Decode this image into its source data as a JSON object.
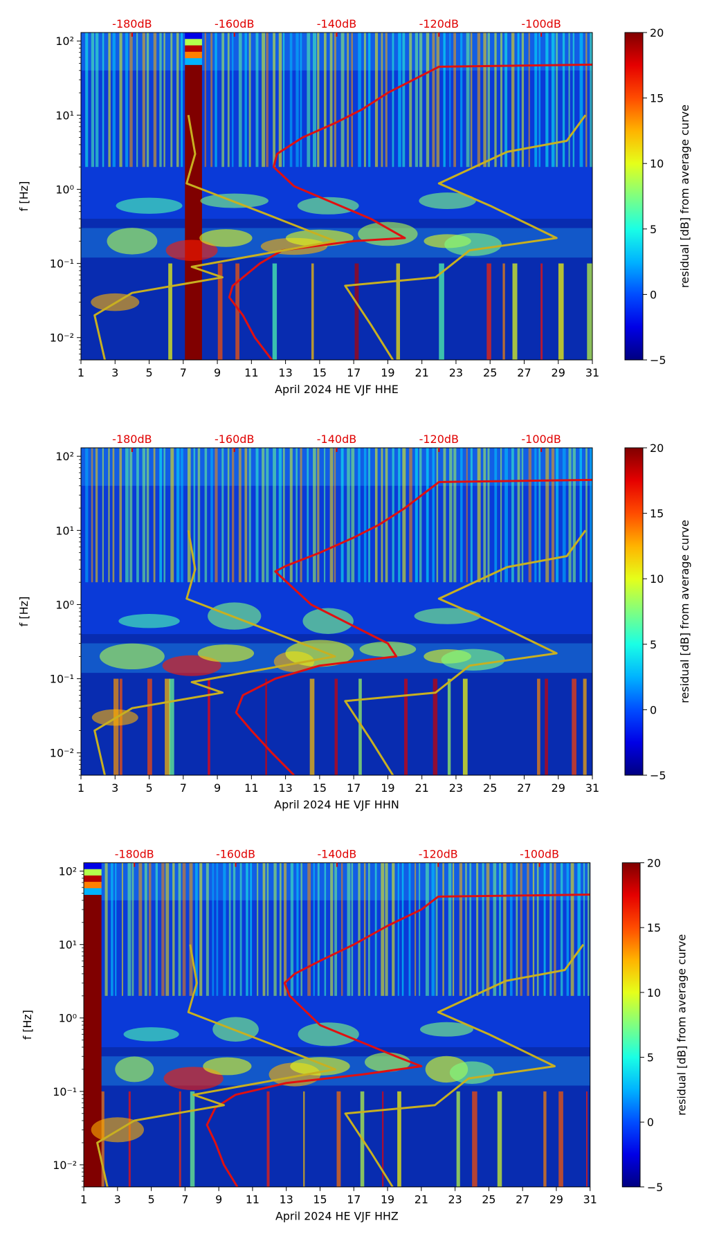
{
  "chart_data": [
    {
      "type": "heatmap",
      "title": "",
      "xlabel": "April 2024 HE VJF  HHE",
      "ylabel": "f [Hz]",
      "x_ticks": [
        "1",
        "3",
        "5",
        "7",
        "9",
        "11",
        "13",
        "15",
        "17",
        "19",
        "21",
        "23",
        "25",
        "27",
        "29",
        "31"
      ],
      "y_ticks": [
        "10⁻²",
        "10⁻¹",
        "10⁰",
        "10¹",
        "10²"
      ],
      "xlim": [
        1,
        31
      ],
      "ylim": [
        0.005,
        130
      ],
      "top_axis_ticks": [
        "-180dB",
        "-160dB",
        "-140dB",
        "-120dB",
        "-100dB"
      ],
      "colorbar": {
        "label": "residual [dB] from average curve",
        "range": [
          -5,
          20
        ],
        "ticks": [
          "20",
          "15",
          "10",
          "5",
          "0",
          "−5"
        ]
      },
      "series": [
        {
          "name": "median PSD curve",
          "color": "#e01010",
          "points": [
            [
              12.2,
              0.005
            ],
            [
              11.2,
              0.01
            ],
            [
              10.5,
              0.02
            ],
            [
              9.7,
              0.035
            ],
            [
              9.9,
              0.05
            ],
            [
              11.5,
              0.1
            ],
            [
              12.8,
              0.15
            ],
            [
              17,
              0.2
            ],
            [
              20,
              0.22
            ],
            [
              18,
              0.4
            ],
            [
              13.5,
              1.1
            ],
            [
              12.3,
              2
            ],
            [
              12.5,
              3
            ],
            [
              14,
              5
            ],
            [
              16,
              8
            ],
            [
              17.5,
              12
            ],
            [
              19,
              20
            ],
            [
              20.5,
              30
            ],
            [
              22,
              45
            ],
            [
              31,
              48
            ]
          ]
        },
        {
          "name": "low noise model",
          "color": "#c8b020",
          "points": [
            [
              2.4,
              0.005
            ],
            [
              2.1,
              0.01
            ],
            [
              1.8,
              0.02
            ],
            [
              4,
              0.04
            ],
            [
              9.3,
              0.065
            ],
            [
              7.5,
              0.09
            ],
            [
              15.9,
              0.2
            ],
            [
              12,
              0.45
            ],
            [
              7.2,
              1.2
            ],
            [
              7.7,
              3
            ],
            [
              7.3,
              10
            ]
          ]
        },
        {
          "name": "high noise model",
          "color": "#c8b020",
          "points": [
            [
              19.3,
              0.005
            ],
            [
              18,
              0.015
            ],
            [
              16.5,
              0.05
            ],
            [
              21.8,
              0.065
            ],
            [
              23.8,
              0.15
            ],
            [
              28.9,
              0.22
            ],
            [
              25,
              0.6
            ],
            [
              22,
              1.2
            ],
            [
              26,
              3.2
            ],
            [
              29.5,
              4.5
            ],
            [
              30.6,
              10
            ]
          ]
        }
      ]
    },
    {
      "type": "heatmap",
      "title": "",
      "xlabel": "April 2024 HE VJF  HHN",
      "ylabel": "f [Hz]",
      "x_ticks": [
        "1",
        "3",
        "5",
        "7",
        "9",
        "11",
        "13",
        "15",
        "17",
        "19",
        "21",
        "23",
        "25",
        "27",
        "29",
        "31"
      ],
      "y_ticks": [
        "10⁻²",
        "10⁻¹",
        "10⁰",
        "10¹",
        "10²"
      ],
      "xlim": [
        1,
        31
      ],
      "ylim": [
        0.005,
        130
      ],
      "top_axis_ticks": [
        "-180dB",
        "-160dB",
        "-140dB",
        "-120dB",
        "-100dB"
      ],
      "colorbar": {
        "label": "residual [dB] from average curve",
        "range": [
          -5,
          20
        ],
        "ticks": [
          "20",
          "15",
          "10",
          "5",
          "0",
          "−5"
        ]
      },
      "series": [
        {
          "name": "median PSD curve",
          "color": "#e01010",
          "points": [
            [
              13.5,
              0.005
            ],
            [
              12.2,
              0.01
            ],
            [
              11,
              0.02
            ],
            [
              10.1,
              0.035
            ],
            [
              10.5,
              0.06
            ],
            [
              12.4,
              0.1
            ],
            [
              15,
              0.15
            ],
            [
              19.5,
              0.2
            ],
            [
              19,
              0.3
            ],
            [
              14.5,
              1
            ],
            [
              12.4,
              2.8
            ],
            [
              13,
              3.3
            ],
            [
              15,
              5
            ],
            [
              17,
              8
            ],
            [
              18.5,
              12
            ],
            [
              20,
              20
            ],
            [
              21,
              30
            ],
            [
              22,
              45
            ],
            [
              31,
              48
            ]
          ]
        },
        {
          "name": "low noise model",
          "color": "#c8b020",
          "points": [
            [
              2.4,
              0.005
            ],
            [
              2.1,
              0.01
            ],
            [
              1.8,
              0.02
            ],
            [
              4,
              0.04
            ],
            [
              9.3,
              0.065
            ],
            [
              7.5,
              0.09
            ],
            [
              15.9,
              0.2
            ],
            [
              12,
              0.45
            ],
            [
              7.2,
              1.2
            ],
            [
              7.7,
              3
            ],
            [
              7.3,
              10
            ]
          ]
        },
        {
          "name": "high noise model",
          "color": "#c8b020",
          "points": [
            [
              19.3,
              0.005
            ],
            [
              18,
              0.015
            ],
            [
              16.5,
              0.05
            ],
            [
              21.8,
              0.065
            ],
            [
              23.8,
              0.15
            ],
            [
              28.9,
              0.22
            ],
            [
              25,
              0.6
            ],
            [
              22,
              1.2
            ],
            [
              26,
              3.2
            ],
            [
              29.5,
              4.5
            ],
            [
              30.6,
              10
            ]
          ]
        }
      ]
    },
    {
      "type": "heatmap",
      "title": "",
      "xlabel": "April 2024 HE VJF  HHZ",
      "ylabel": "f [Hz]",
      "x_ticks": [
        "1",
        "3",
        "5",
        "7",
        "9",
        "11",
        "13",
        "15",
        "17",
        "19",
        "21",
        "23",
        "25",
        "27",
        "29",
        "31"
      ],
      "y_ticks": [
        "10⁻²",
        "10⁻¹",
        "10⁰",
        "10¹",
        "10²"
      ],
      "xlim": [
        1,
        31
      ],
      "ylim": [
        0.005,
        130
      ],
      "top_axis_ticks": [
        "-180dB",
        "-160dB",
        "-140dB",
        "-120dB",
        "-100dB"
      ],
      "colorbar": {
        "label": "residual [dB] from average curve",
        "range": [
          -5,
          20
        ],
        "ticks": [
          "20",
          "15",
          "10",
          "5",
          "0",
          "−5"
        ]
      },
      "series": [
        {
          "name": "median PSD curve",
          "color": "#e01010",
          "points": [
            [
              10.1,
              0.005
            ],
            [
              9.3,
              0.01
            ],
            [
              8.8,
              0.02
            ],
            [
              8.3,
              0.035
            ],
            [
              8.8,
              0.06
            ],
            [
              10,
              0.09
            ],
            [
              13,
              0.13
            ],
            [
              17.5,
              0.17
            ],
            [
              21,
              0.22
            ],
            [
              19.5,
              0.3
            ],
            [
              15,
              0.8
            ],
            [
              13.2,
              2
            ],
            [
              12.9,
              3
            ],
            [
              13.5,
              4
            ],
            [
              15,
              6
            ],
            [
              17,
              10
            ],
            [
              19,
              18
            ],
            [
              21,
              30
            ],
            [
              22,
              45
            ],
            [
              31,
              48
            ]
          ]
        },
        {
          "name": "low noise model",
          "color": "#c8b020",
          "points": [
            [
              2.4,
              0.005
            ],
            [
              2.1,
              0.01
            ],
            [
              1.8,
              0.02
            ],
            [
              4,
              0.04
            ],
            [
              9.3,
              0.065
            ],
            [
              7.5,
              0.09
            ],
            [
              15.9,
              0.2
            ],
            [
              12,
              0.45
            ],
            [
              7.2,
              1.2
            ],
            [
              7.7,
              3
            ],
            [
              7.3,
              10
            ]
          ]
        },
        {
          "name": "high noise model",
          "color": "#c8b020",
          "points": [
            [
              19.3,
              0.005
            ],
            [
              18,
              0.015
            ],
            [
              16.5,
              0.05
            ],
            [
              21.8,
              0.065
            ],
            [
              23.8,
              0.15
            ],
            [
              28.9,
              0.22
            ],
            [
              25,
              0.6
            ],
            [
              22,
              1.2
            ],
            [
              26,
              3.2
            ],
            [
              29.5,
              4.5
            ],
            [
              30.6,
              10
            ]
          ]
        }
      ]
    }
  ]
}
